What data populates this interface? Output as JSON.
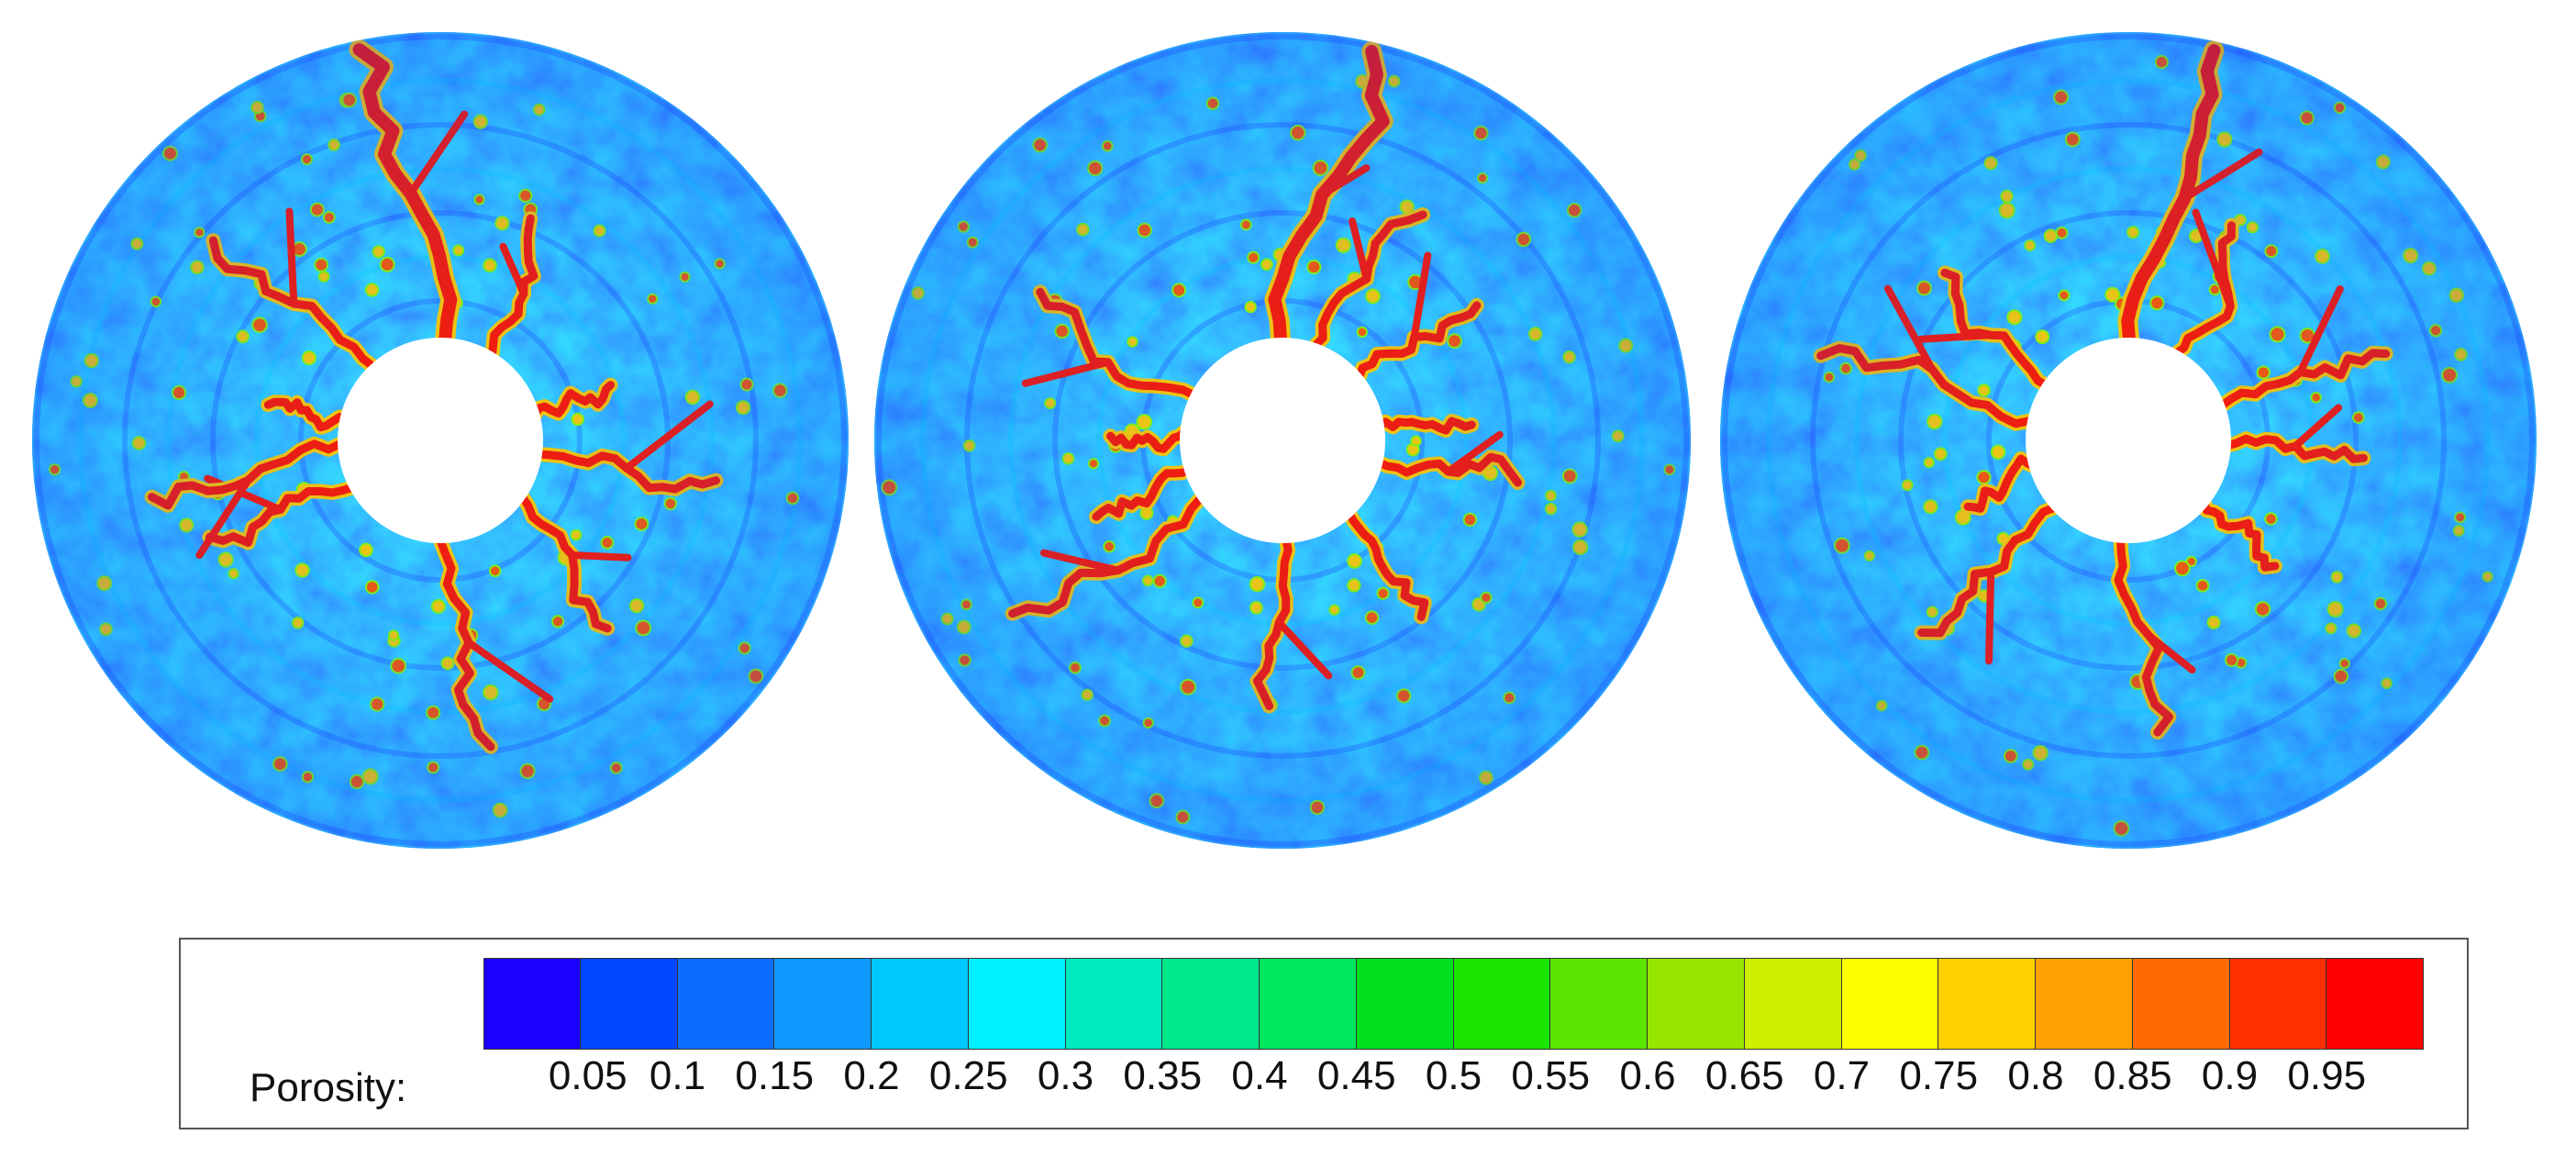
{
  "figure": {
    "panel_count": 3,
    "panels": [
      {
        "name": "panel-1",
        "crack_arms_deg": [
          -88,
          -55,
          -18,
          8,
          35,
          92,
          150,
          178,
          195,
          225
        ]
      },
      {
        "name": "panel-2",
        "crack_arms_deg": [
          -92,
          -70,
          -40,
          -5,
          10,
          45,
          90,
          145,
          160,
          185,
          210
        ]
      },
      {
        "name": "panel-3",
        "crack_arms_deg": [
          -90,
          -60,
          -20,
          5,
          40,
          95,
          140,
          165,
          190,
          215
        ]
      }
    ],
    "colors": {
      "crack": "#ff1a00",
      "crack_edge": "#ffcc00",
      "hole": "#ffffff"
    }
  },
  "legend": {
    "title": "Porosity:",
    "ticks": [
      "0.05",
      "0.1",
      "0.15",
      "0.2",
      "0.25",
      "0.3",
      "0.35",
      "0.4",
      "0.45",
      "0.5",
      "0.55",
      "0.6",
      "0.65",
      "0.7",
      "0.75",
      "0.8",
      "0.85",
      "0.9",
      "0.95"
    ],
    "swatch_colors": [
      "#1b00ff",
      "#0047ff",
      "#0a6dff",
      "#0f9aff",
      "#00c8ff",
      "#00f2ff",
      "#00eac0",
      "#00e88c",
      "#00e65e",
      "#00e01e",
      "#1ae600",
      "#5ae600",
      "#96e600",
      "#cfef00",
      "#ffff00",
      "#ffd000",
      "#ffa000",
      "#ff6a00",
      "#ff3000",
      "#ff0000"
    ]
  }
}
